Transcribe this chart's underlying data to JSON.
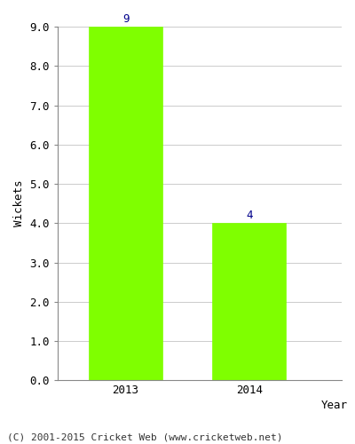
{
  "categories": [
    "2013",
    "2014"
  ],
  "values": [
    9,
    4
  ],
  "bar_color": "#7fff00",
  "bar_edgecolor": "#7fff00",
  "label_color": "#00008b",
  "xlabel": "Year",
  "ylabel": "Wickets",
  "ylim": [
    0,
    9.0
  ],
  "yticks": [
    0.0,
    1.0,
    2.0,
    3.0,
    4.0,
    5.0,
    6.0,
    7.0,
    8.0,
    9.0
  ],
  "footer": "(C) 2001-2015 Cricket Web (www.cricketweb.net)",
  "label_fontsize": 9,
  "axis_label_fontsize": 9,
  "tick_fontsize": 9,
  "footer_fontsize": 8,
  "bar_width": 0.6
}
